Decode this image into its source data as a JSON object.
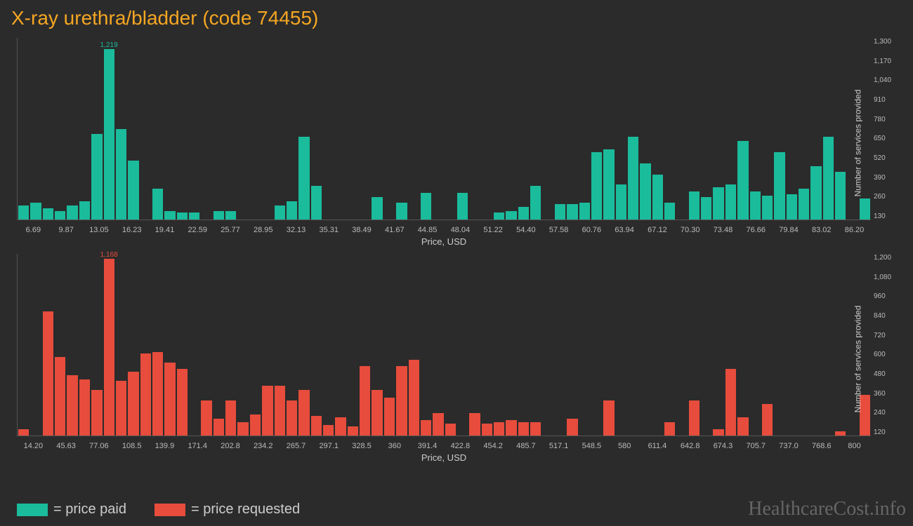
{
  "title": "X-ray urethra/bladder (code 74455)",
  "watermark": "HealthcareCost.info",
  "legend": {
    "paid": "= price paid",
    "requested": "= price requested"
  },
  "colors": {
    "background": "#2b2b2b",
    "title": "#f5a623",
    "axis": "#555555",
    "text": "#cccccc",
    "green": "#1abc9c",
    "red": "#e74c3c"
  },
  "chart_paid": {
    "type": "bar",
    "color": "#1abc9c",
    "xaxis_title": "Price, USD",
    "yaxis_title": "Number of services provided",
    "ylim": [
      0,
      1300
    ],
    "yticks": [
      "130",
      "260",
      "390",
      "520",
      "650",
      "780",
      "910",
      "1,040",
      "1,170",
      "1,300"
    ],
    "xticks": [
      "6.69",
      "9.87",
      "13.05",
      "16.23",
      "19.41",
      "22.59",
      "25.77",
      "28.95",
      "32.13",
      "35.31",
      "38.49",
      "41.67",
      "44.85",
      "48.04",
      "51.22",
      "54.40",
      "57.58",
      "60.76",
      "63.94",
      "67.12",
      "70.30",
      "73.48",
      "76.66",
      "79.84",
      "83.02",
      "86.20"
    ],
    "max_label": "1,219",
    "max_index": 7,
    "values": [
      100,
      120,
      80,
      60,
      100,
      130,
      610,
      1219,
      650,
      420,
      0,
      220,
      60,
      50,
      50,
      0,
      60,
      60,
      0,
      0,
      0,
      100,
      130,
      590,
      240,
      0,
      0,
      0,
      0,
      160,
      0,
      120,
      0,
      190,
      0,
      0,
      190,
      0,
      0,
      50,
      60,
      90,
      240,
      0,
      110,
      110,
      120,
      480,
      500,
      250,
      590,
      400,
      320,
      120,
      0,
      200,
      160,
      230,
      250,
      560,
      200,
      170,
      480,
      180,
      220,
      380,
      590,
      340,
      0,
      150
    ]
  },
  "chart_requested": {
    "type": "bar",
    "color": "#e74c3c",
    "xaxis_title": "Price, USD",
    "yaxis_title": "Number of services provided",
    "ylim": [
      0,
      1200
    ],
    "yticks": [
      "120",
      "240",
      "360",
      "480",
      "600",
      "720",
      "840",
      "960",
      "1,080",
      "1,200"
    ],
    "xticks": [
      "14.20",
      "45.63",
      "77.06",
      "108.5",
      "139.9",
      "171.4",
      "202.8",
      "234.2",
      "265.7",
      "297.1",
      "328.5",
      "360",
      "391.4",
      "422.8",
      "454.2",
      "485.7",
      "517.1",
      "548.5",
      "580",
      "611.4",
      "642.8",
      "674.3",
      "705.7",
      "737.0",
      "768.6",
      "800"
    ],
    "max_label": "1,168",
    "max_index": 7,
    "values": [
      40,
      0,
      820,
      520,
      400,
      370,
      300,
      1168,
      360,
      420,
      540,
      550,
      480,
      440,
      0,
      230,
      110,
      230,
      90,
      140,
      330,
      330,
      230,
      300,
      130,
      70,
      120,
      60,
      460,
      300,
      250,
      460,
      500,
      100,
      150,
      80,
      0,
      150,
      80,
      90,
      100,
      90,
      90,
      0,
      0,
      110,
      0,
      0,
      230,
      0,
      0,
      0,
      0,
      90,
      0,
      230,
      0,
      40,
      440,
      120,
      0,
      210,
      0,
      0,
      0,
      0,
      0,
      30,
      0,
      270
    ]
  }
}
